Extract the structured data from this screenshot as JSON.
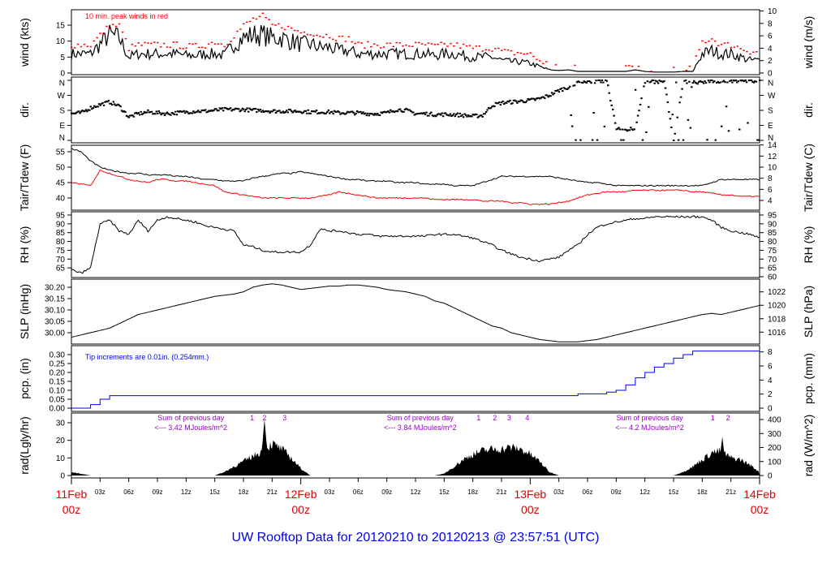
{
  "title": "UW Rooftop Data for 20120210  to  20120213 @ 23:57:51  (UTC)",
  "colors": {
    "black": "#000000",
    "red": "#ff0000",
    "blue": "#0000ff",
    "purple": "#9900cc",
    "day_label": "#e00000",
    "title": "#0000ee"
  },
  "chart_data": [
    {
      "type": "line",
      "id": "wind",
      "ylabel": "wind (kts)",
      "ylabel_right": "wind (m/s)",
      "yticks": [
        "0",
        "5",
        "10",
        "15"
      ],
      "yticks_right": [
        "0",
        "2",
        "4",
        "6",
        "8",
        "10"
      ],
      "ylim": [
        0,
        19.5
      ],
      "annotation": "10 min. peak winds in red",
      "x_hours": "0..72 hourly",
      "series": [
        {
          "name": "wind",
          "color": "#000000",
          "values": [
            6,
            6,
            6,
            9,
            12,
            11,
            5,
            6,
            6,
            6,
            6,
            6,
            5.5,
            5.5,
            6,
            6,
            5.5,
            9,
            11,
            12,
            12,
            11,
            11,
            10,
            9,
            9,
            8,
            8,
            7,
            7,
            6,
            6,
            6,
            6,
            6,
            6,
            6,
            6,
            5.5,
            6,
            6,
            5.5,
            5,
            5,
            5,
            4,
            3.5,
            3.5,
            3,
            2,
            1,
            0.8,
            1,
            0.5,
            0.5,
            0.5,
            0.5,
            0.5,
            0.5,
            1,
            0.5,
            0.3,
            0.3,
            0.3,
            0.5,
            0.5,
            6,
            7,
            6,
            6,
            5,
            4,
            4
          ]
        },
        {
          "name": "10 min. peak winds",
          "color": "#ff0000",
          "values": [
            9,
            9,
            9,
            12,
            15,
            15,
            8,
            9,
            9,
            9,
            9,
            9,
            8.5,
            8.5,
            9,
            10,
            9,
            12,
            15,
            17,
            18,
            15,
            15,
            14,
            13,
            13,
            12,
            12,
            11,
            11,
            9,
            9,
            9,
            9,
            9,
            9,
            9,
            9,
            8.5,
            9,
            9,
            8.5,
            8,
            8,
            8,
            7,
            6.5,
            6.5,
            6,
            4,
            3,
            2.5,
            3,
            2,
            2,
            2,
            2,
            2,
            2,
            3,
            2,
            1,
            1,
            1,
            2,
            2,
            10,
            11,
            9,
            9,
            8,
            7,
            7
          ]
        }
      ]
    },
    {
      "type": "scatter",
      "id": "dir",
      "ylabel": "dir.",
      "ylabel_right": "dir.",
      "yticks": [
        "N",
        "E",
        "S",
        "W",
        "N"
      ],
      "ylim": [
        0,
        360
      ],
      "series": [
        {
          "name": "direction (deg)",
          "color": "#000000",
          "values": [
            160,
            165,
            195,
            215,
            230,
            205,
            140,
            160,
            170,
            165,
            160,
            165,
            170,
            175,
            175,
            180,
            185,
            185,
            185,
            180,
            180,
            175,
            175,
            175,
            175,
            170,
            170,
            170,
            165,
            165,
            165,
            160,
            160,
            165,
            185,
            180,
            160,
            160,
            155,
            155,
            155,
            150,
            145,
            150,
            210,
            225,
            230,
            235,
            240,
            250,
            270,
            300,
            320,
            345,
            350,
            355,
            355,
            70,
            65,
            70,
            355,
            350,
            355,
            0,
            355,
            350,
            345,
            355,
            355,
            355,
            350,
            355,
            355
          ]
        }
      ]
    },
    {
      "type": "line",
      "id": "temp",
      "ylabel": "Tair/Tdew (F)",
      "ylabel_right": "Tair/Tdew (C)",
      "yticks": [
        "40",
        "45",
        "50",
        "55"
      ],
      "yticks_right": [
        "4",
        "6",
        "8",
        "10",
        "12",
        "14"
      ],
      "ylim": [
        37.5,
        57.5
      ],
      "series": [
        {
          "name": "Tair",
          "color": "#000000",
          "values": [
            56,
            55,
            52,
            50,
            49,
            48.5,
            48,
            48,
            47.5,
            47.5,
            47.5,
            47,
            47,
            46.5,
            46,
            46,
            45.5,
            45.5,
            45.5,
            46.5,
            47,
            47.5,
            48,
            48,
            48.5,
            48,
            47.5,
            47,
            46.5,
            46,
            46,
            45.5,
            45.5,
            45.5,
            45,
            45,
            45,
            44.5,
            44.5,
            44.5,
            44,
            44,
            44,
            45,
            46,
            47,
            47,
            47,
            47,
            47,
            47,
            46.5,
            46,
            45.5,
            45,
            45,
            44.5,
            44,
            44,
            44,
            44,
            44,
            44,
            44,
            44,
            44,
            44,
            45,
            46,
            46,
            46,
            46,
            46
          ]
        },
        {
          "name": "Tdew",
          "color": "#ff0000",
          "values": [
            45,
            44.5,
            44,
            49,
            48,
            47,
            46,
            45.5,
            45,
            46,
            46,
            45.5,
            45.5,
            45,
            44.5,
            44,
            42,
            41.5,
            41,
            40.5,
            40,
            40,
            40,
            40,
            40,
            40,
            40.5,
            41,
            42,
            41.5,
            41,
            40.5,
            40,
            40,
            40,
            40,
            40,
            40,
            39.5,
            39.5,
            39.5,
            39.5,
            39.5,
            39,
            39,
            39,
            38.5,
            38.5,
            38,
            38,
            38,
            38.5,
            39,
            40,
            41,
            41.5,
            42,
            42,
            42,
            42.5,
            42.5,
            42.5,
            42.5,
            42.5,
            42.5,
            42,
            42,
            41.5,
            41,
            41,
            40.5,
            40.5,
            40.5
          ]
        }
      ]
    },
    {
      "type": "line",
      "id": "rh",
      "ylabel": "RH (%)",
      "ylabel_right": "RH (%)",
      "yticks": [
        "65",
        "70",
        "75",
        "80",
        "85",
        "90",
        "95"
      ],
      "yticks_right": [
        "60",
        "65",
        "70",
        "75",
        "80",
        "85",
        "90",
        "95"
      ],
      "ylim": [
        60,
        96
      ],
      "series": [
        {
          "name": "RH",
          "color": "#000000",
          "values": [
            64,
            62,
            65,
            90,
            92,
            86,
            84,
            92,
            86,
            92,
            94,
            93,
            92,
            91,
            89,
            88,
            87,
            86,
            78,
            77,
            75,
            74,
            74,
            74,
            74,
            78,
            87,
            86,
            86,
            85,
            84,
            84,
            83,
            83,
            83,
            83,
            83,
            83,
            84,
            84,
            84,
            83,
            82,
            80,
            78,
            75,
            73,
            71,
            70,
            69,
            70,
            71,
            75,
            78,
            84,
            88,
            90,
            91,
            92,
            93,
            93,
            94,
            94,
            94,
            94,
            94,
            94,
            92,
            88,
            86,
            85,
            84,
            82
          ]
        }
      ]
    },
    {
      "type": "line",
      "id": "slp",
      "ylabel": "SLP (inHg)",
      "ylabel_right": "SLP (hPa)",
      "yticks": [
        "30.00",
        "30.05",
        "30.10",
        "30.15",
        "30.20"
      ],
      "yticks_right": [
        "1016",
        "1018",
        "1020",
        "1022"
      ],
      "ylim": [
        29.955,
        30.235
      ],
      "series": [
        {
          "name": "SLP",
          "color": "#000000",
          "values": [
            29.98,
            29.99,
            30.0,
            30.01,
            30.02,
            30.04,
            30.06,
            30.08,
            30.09,
            30.1,
            30.11,
            30.12,
            30.13,
            30.14,
            30.15,
            30.16,
            30.165,
            30.17,
            30.18,
            30.2,
            30.21,
            30.215,
            30.21,
            30.2,
            30.19,
            30.195,
            30.2,
            30.205,
            30.205,
            30.21,
            30.21,
            30.205,
            30.2,
            30.19,
            30.185,
            30.18,
            30.17,
            30.16,
            30.14,
            30.13,
            30.11,
            30.09,
            30.07,
            30.05,
            30.03,
            30.02,
            30.0,
            29.99,
            29.98,
            29.97,
            29.965,
            29.96,
            29.96,
            29.96,
            29.965,
            29.97,
            29.98,
            29.99,
            30.0,
            30.01,
            30.02,
            30.03,
            30.04,
            30.05,
            30.06,
            30.07,
            30.08,
            30.085,
            30.08,
            30.09,
            30.1,
            30.11,
            30.12
          ]
        }
      ]
    },
    {
      "type": "line",
      "id": "pcp",
      "ylabel": "pcp. (in)",
      "ylabel_right": "pcp. (mm)",
      "yticks": [
        "0.00",
        "0.05",
        "0.10",
        "0.15",
        "0.20",
        "0.25",
        "0.30"
      ],
      "yticks_right": [
        "0",
        "2",
        "4",
        "6",
        "8"
      ],
      "ylim": [
        -0.005,
        0.33
      ],
      "annotation": "Tip increments are 0.01in. (0.254mm.)",
      "series": [
        {
          "name": "precip accum",
          "color": "#0000ff",
          "values": [
            0,
            0,
            0.02,
            0.05,
            0.07,
            0.07,
            0.07,
            0.07,
            0.07,
            0.07,
            0.07,
            0.07,
            0.07,
            0.07,
            0.07,
            0.07,
            0.07,
            0.07,
            0.07,
            0.07,
            0.07,
            0.07,
            0.07,
            0.07,
            0.07,
            0.07,
            0.07,
            0.07,
            0.07,
            0.07,
            0.07,
            0.07,
            0.07,
            0.07,
            0.07,
            0.07,
            0.07,
            0.07,
            0.07,
            0.07,
            0.07,
            0.07,
            0.07,
            0.07,
            0.07,
            0.07,
            0.07,
            0.07,
            0.07,
            0.07,
            0.07,
            0.07,
            0.07,
            0.08,
            0.08,
            0.08,
            0.09,
            0.1,
            0.13,
            0.17,
            0.2,
            0.23,
            0.25,
            0.28,
            0.3,
            0.32,
            0.32,
            0.32,
            0.32,
            0.32,
            0.32,
            0.32,
            0.32
          ]
        }
      ]
    },
    {
      "type": "area",
      "id": "rad",
      "ylabel": "rad(Lgly/hr)",
      "ylabel_right": "rad (W/m^2)",
      "yticks": [
        "0",
        "10",
        "20",
        "30"
      ],
      "yticks_right": [
        "0",
        "100",
        "200",
        "300",
        "400"
      ],
      "ylim": [
        0,
        33
      ],
      "series": [
        {
          "name": "radiation",
          "color": "#000000",
          "values": [
            2,
            1,
            0,
            0,
            0,
            0,
            0,
            0,
            0,
            0,
            0,
            0,
            0,
            0,
            0,
            0,
            2,
            5,
            8,
            11,
            14,
            18,
            15,
            10,
            4,
            0,
            0,
            0,
            0,
            0,
            0,
            0,
            0,
            0,
            0,
            0,
            0,
            0,
            0,
            1,
            5,
            9,
            12,
            14,
            15,
            15,
            16,
            15,
            12,
            8,
            2,
            0,
            0,
            0,
            0,
            0,
            0,
            0,
            0,
            0,
            0,
            0,
            0,
            0,
            2,
            5,
            9,
            13,
            14,
            10,
            9,
            6,
            2
          ]
        }
      ],
      "spikes": [
        {
          "hour": 20.2,
          "value": 32
        },
        {
          "hour": 68.1,
          "value": 22
        }
      ],
      "daily_sums": [
        {
          "label": "Sum of previous day",
          "value": "<--- 3.42 MJoules/m^2",
          "hour": 7
        },
        {
          "label": "Sum of previous day",
          "value": "<--- 3.84 MJoules/m^2",
          "hour": 31
        },
        {
          "label": "Sum of previous day",
          "value": "<--- 4.2 MJoules/m^2",
          "hour": 55
        }
      ],
      "markers": [
        {
          "text": "1",
          "hour": 18.9
        },
        {
          "text": "2",
          "hour": 20.2
        },
        {
          "text": "3",
          "hour": 22.3
        },
        {
          "text": "1",
          "hour": 42.6
        },
        {
          "text": "2",
          "hour": 44.3
        },
        {
          "text": "3",
          "hour": 45.8
        },
        {
          "text": "4",
          "hour": 47.7
        },
        {
          "text": "1",
          "hour": 67.1
        },
        {
          "text": "2",
          "hour": 68.7
        }
      ]
    }
  ],
  "x_axis": {
    "hour_labels": [
      "03z",
      "06z",
      "09z",
      "12z",
      "15z",
      "18z",
      "21z"
    ],
    "days": [
      {
        "date": "11Feb",
        "time": "00z"
      },
      {
        "date": "12Feb",
        "time": "00z"
      },
      {
        "date": "13Feb",
        "time": "00z"
      },
      {
        "date": "14Feb",
        "time": "00z"
      }
    ]
  }
}
